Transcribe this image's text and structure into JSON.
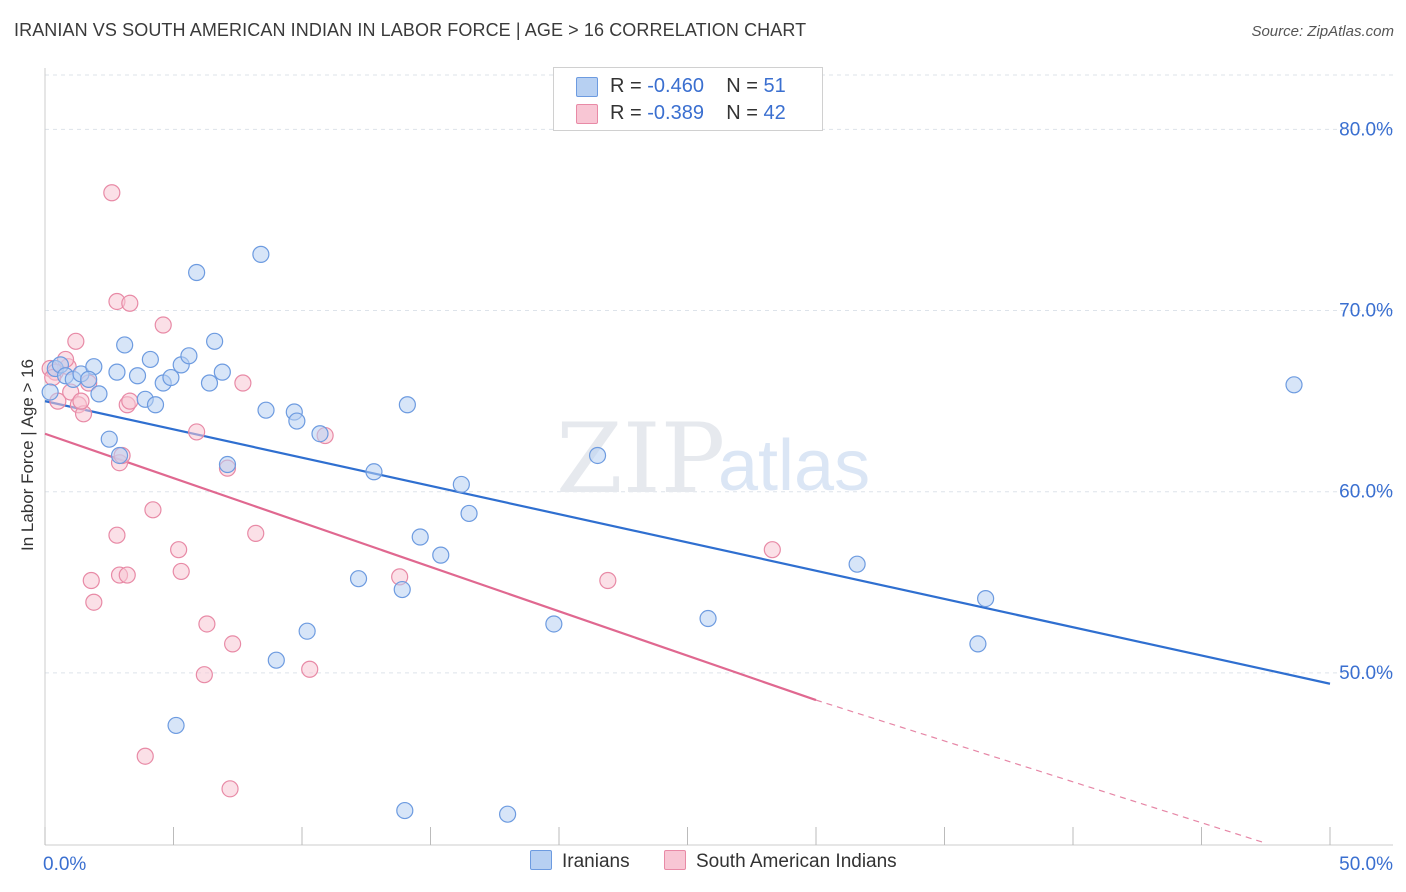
{
  "title": "IRANIAN VS SOUTH AMERICAN INDIAN IN LABOR FORCE | AGE > 16 CORRELATION CHART",
  "source": "Source: ZipAtlas.com",
  "watermark": {
    "zip": "ZIP",
    "atlas": "atlas"
  },
  "legend": {
    "rows": [
      {
        "r_label": "R =",
        "r_value": "-0.460",
        "n_label": "N =",
        "n_value": "51"
      },
      {
        "r_label": "R =",
        "r_value": "-0.389",
        "n_label": "N =",
        "n_value": "42"
      }
    ]
  },
  "colors": {
    "iranians_fill": "#b7d0f2",
    "iranians_stroke": "#6d9be0",
    "iranians_line": "#2f6fd0",
    "sai_fill": "#f8c6d4",
    "sai_stroke": "#e88aa6",
    "sai_line": "#e06890",
    "tick_text": "#3a6fd0",
    "grid": "#dde3ea"
  },
  "chart_data": {
    "type": "scatter",
    "title": "IRANIAN VS SOUTH AMERICAN INDIAN IN LABOR FORCE | AGE > 16 CORRELATION CHART",
    "xlabel": "",
    "ylabel": "In Labor Force | Age > 16",
    "xlim": [
      0,
      50
    ],
    "ylim": [
      40.5,
      83
    ],
    "x_tick_labels": [
      "0.0%",
      "50.0%"
    ],
    "y_ticks": [
      50,
      60,
      70,
      80
    ],
    "y_tick_labels": [
      "50.0%",
      "60.0%",
      "70.0%",
      "80.0%"
    ],
    "grid": true,
    "legend_position": "top-center",
    "series": [
      {
        "name": "Iranians",
        "r": -0.46,
        "n": 51,
        "trend": {
          "x0": 0,
          "y0": 65.0,
          "x1": 50,
          "y1": 49.4
        },
        "points": [
          [
            0.2,
            65.5
          ],
          [
            0.4,
            66.8
          ],
          [
            0.6,
            67.0
          ],
          [
            0.8,
            66.4
          ],
          [
            1.1,
            66.2
          ],
          [
            1.4,
            66.5
          ],
          [
            1.9,
            66.9
          ],
          [
            1.7,
            66.2
          ],
          [
            2.1,
            65.4
          ],
          [
            2.5,
            62.9
          ],
          [
            3.1,
            68.1
          ],
          [
            2.8,
            66.6
          ],
          [
            2.9,
            62.0
          ],
          [
            3.6,
            66.4
          ],
          [
            3.9,
            65.1
          ],
          [
            4.1,
            67.3
          ],
          [
            4.3,
            64.8
          ],
          [
            4.6,
            66.0
          ],
          [
            4.9,
            66.3
          ],
          [
            5.3,
            67.0
          ],
          [
            5.6,
            67.5
          ],
          [
            5.9,
            72.1
          ],
          [
            6.4,
            66.0
          ],
          [
            6.6,
            68.3
          ],
          [
            6.9,
            66.6
          ],
          [
            7.1,
            61.5
          ],
          [
            8.4,
            73.1
          ],
          [
            8.6,
            64.5
          ],
          [
            9.7,
            64.4
          ],
          [
            9.8,
            63.9
          ],
          [
            10.7,
            63.2
          ],
          [
            12.8,
            61.1
          ],
          [
            14.1,
            64.8
          ],
          [
            14.6,
            57.5
          ],
          [
            15.4,
            56.5
          ],
          [
            16.2,
            60.4
          ],
          [
            16.5,
            58.8
          ],
          [
            12.2,
            55.2
          ],
          [
            13.9,
            54.6
          ],
          [
            10.2,
            52.3
          ],
          [
            9.0,
            50.7
          ],
          [
            5.1,
            47.1
          ],
          [
            14.0,
            42.4
          ],
          [
            18.0,
            42.2
          ],
          [
            21.5,
            62.0
          ],
          [
            19.8,
            52.7
          ],
          [
            25.8,
            53.0
          ],
          [
            31.6,
            56.0
          ],
          [
            36.3,
            51.6
          ],
          [
            36.6,
            54.1
          ],
          [
            48.6,
            65.9
          ]
        ]
      },
      {
        "name": "South American Indians",
        "r": -0.389,
        "n": 42,
        "trend": {
          "x0": 0,
          "y0": 63.2,
          "x1": 30.0,
          "y1": 48.5,
          "dash_to_x": 47.5,
          "dash_to_y": 40.6
        },
        "points": [
          [
            0.2,
            66.8
          ],
          [
            0.4,
            66.6
          ],
          [
            0.5,
            65.0
          ],
          [
            0.9,
            66.9
          ],
          [
            1.0,
            65.5
          ],
          [
            1.3,
            64.8
          ],
          [
            1.5,
            64.3
          ],
          [
            1.2,
            68.3
          ],
          [
            1.7,
            66.0
          ],
          [
            2.6,
            76.5
          ],
          [
            2.8,
            70.5
          ],
          [
            3.3,
            70.4
          ],
          [
            4.6,
            69.2
          ],
          [
            3.2,
            64.8
          ],
          [
            3.3,
            65.0
          ],
          [
            2.9,
            61.6
          ],
          [
            3.0,
            62.0
          ],
          [
            2.8,
            57.6
          ],
          [
            2.9,
            55.4
          ],
          [
            3.2,
            55.4
          ],
          [
            1.8,
            55.1
          ],
          [
            1.9,
            53.9
          ],
          [
            4.2,
            59.0
          ],
          [
            5.2,
            56.8
          ],
          [
            5.3,
            55.6
          ],
          [
            5.9,
            63.3
          ],
          [
            6.3,
            52.7
          ],
          [
            6.2,
            49.9
          ],
          [
            7.1,
            61.3
          ],
          [
            7.3,
            51.6
          ],
          [
            7.7,
            66.0
          ],
          [
            8.2,
            57.7
          ],
          [
            10.3,
            50.2
          ],
          [
            10.9,
            63.1
          ],
          [
            13.8,
            55.3
          ],
          [
            21.9,
            55.1
          ],
          [
            28.3,
            56.8
          ],
          [
            3.9,
            45.4
          ],
          [
            7.2,
            43.6
          ],
          [
            0.8,
            67.3
          ],
          [
            0.3,
            66.3
          ],
          [
            1.4,
            65.0
          ]
        ]
      }
    ]
  }
}
